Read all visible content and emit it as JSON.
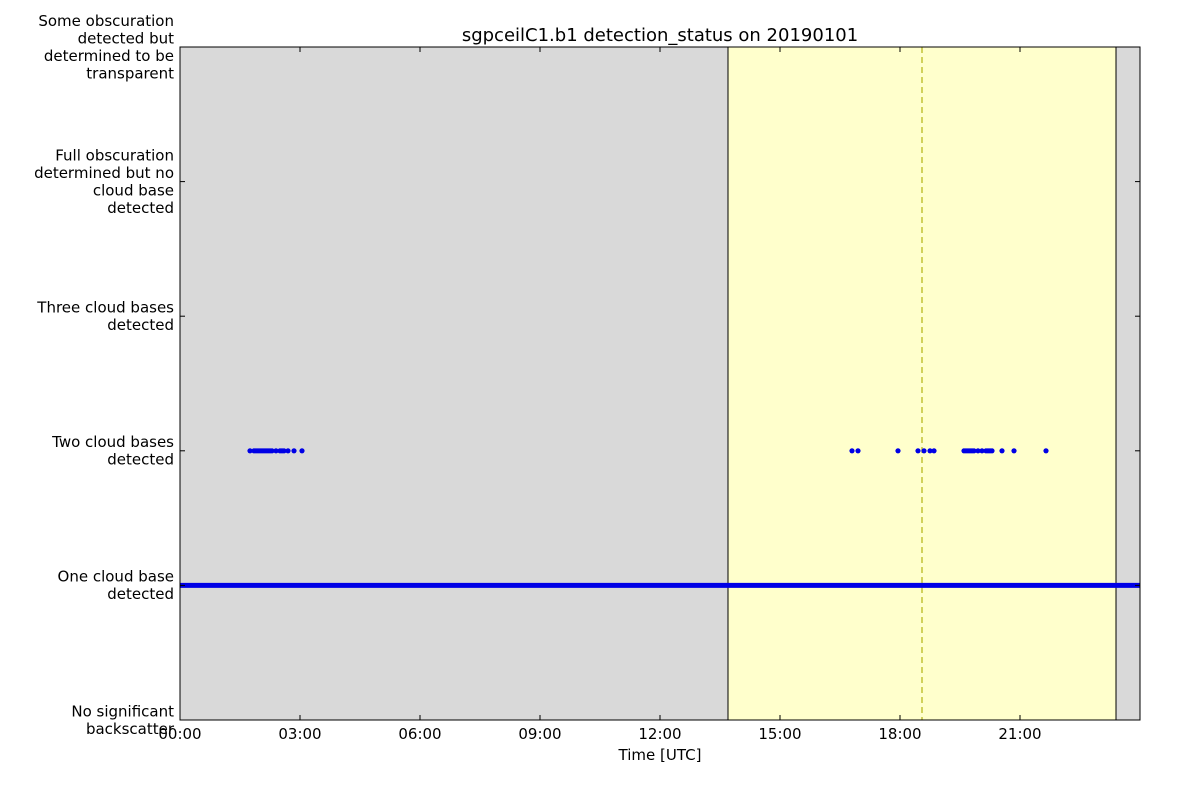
{
  "chart_data": {
    "type": "scatter",
    "title": "sgpceilC1.b1 detection_status on 20190101",
    "xlabel": "Time [UTC]",
    "ylabel": "",
    "x_unit": "hours UTC",
    "xlim": [
      0,
      24
    ],
    "x_ticks": [
      {
        "value": 0,
        "label": "00:00"
      },
      {
        "value": 3,
        "label": "03:00"
      },
      {
        "value": 6,
        "label": "06:00"
      },
      {
        "value": 9,
        "label": "09:00"
      },
      {
        "value": 12,
        "label": "12:00"
      },
      {
        "value": 15,
        "label": "15:00"
      },
      {
        "value": 18,
        "label": "18:00"
      },
      {
        "value": 21,
        "label": "21:00"
      }
    ],
    "ylim": [
      0,
      5
    ],
    "y_ticks": [
      {
        "value": 0,
        "lines": [
          "No significant",
          "backscatter"
        ]
      },
      {
        "value": 1,
        "lines": [
          "One cloud base",
          "detected"
        ]
      },
      {
        "value": 2,
        "lines": [
          "Two cloud bases",
          "detected"
        ]
      },
      {
        "value": 3,
        "lines": [
          "Three cloud bases",
          "detected"
        ]
      },
      {
        "value": 4,
        "lines": [
          "Full obscuration",
          "determined but no",
          "cloud base",
          "detected"
        ]
      },
      {
        "value": 5,
        "lines": [
          "Some obscuration",
          "detected but",
          "determined to be",
          "transparent"
        ]
      }
    ],
    "grid": false,
    "background_color": "#d9d9d9",
    "daytime_span": {
      "start": 13.7,
      "end": 23.4,
      "color": "#ffffcc"
    },
    "solar_noon_line": {
      "x": 18.55,
      "color": "#b8b820"
    },
    "point_color": "#0000e6",
    "series": [
      {
        "category": 1,
        "continuous_from": 0,
        "continuous_to": 24,
        "points": []
      },
      {
        "category": 2,
        "continuous_from": null,
        "continuous_to": null,
        "points": [
          1.75,
          1.85,
          1.9,
          1.95,
          2.0,
          2.05,
          2.1,
          2.15,
          2.2,
          2.25,
          2.3,
          2.4,
          2.5,
          2.55,
          2.6,
          2.7,
          2.85,
          3.05,
          16.8,
          16.95,
          17.95,
          18.45,
          18.6,
          18.75,
          18.85,
          19.6,
          19.65,
          19.7,
          19.75,
          19.8,
          19.85,
          19.95,
          20.05,
          20.15,
          20.2,
          20.25,
          20.3,
          20.55,
          20.85,
          21.65
        ]
      }
    ]
  }
}
